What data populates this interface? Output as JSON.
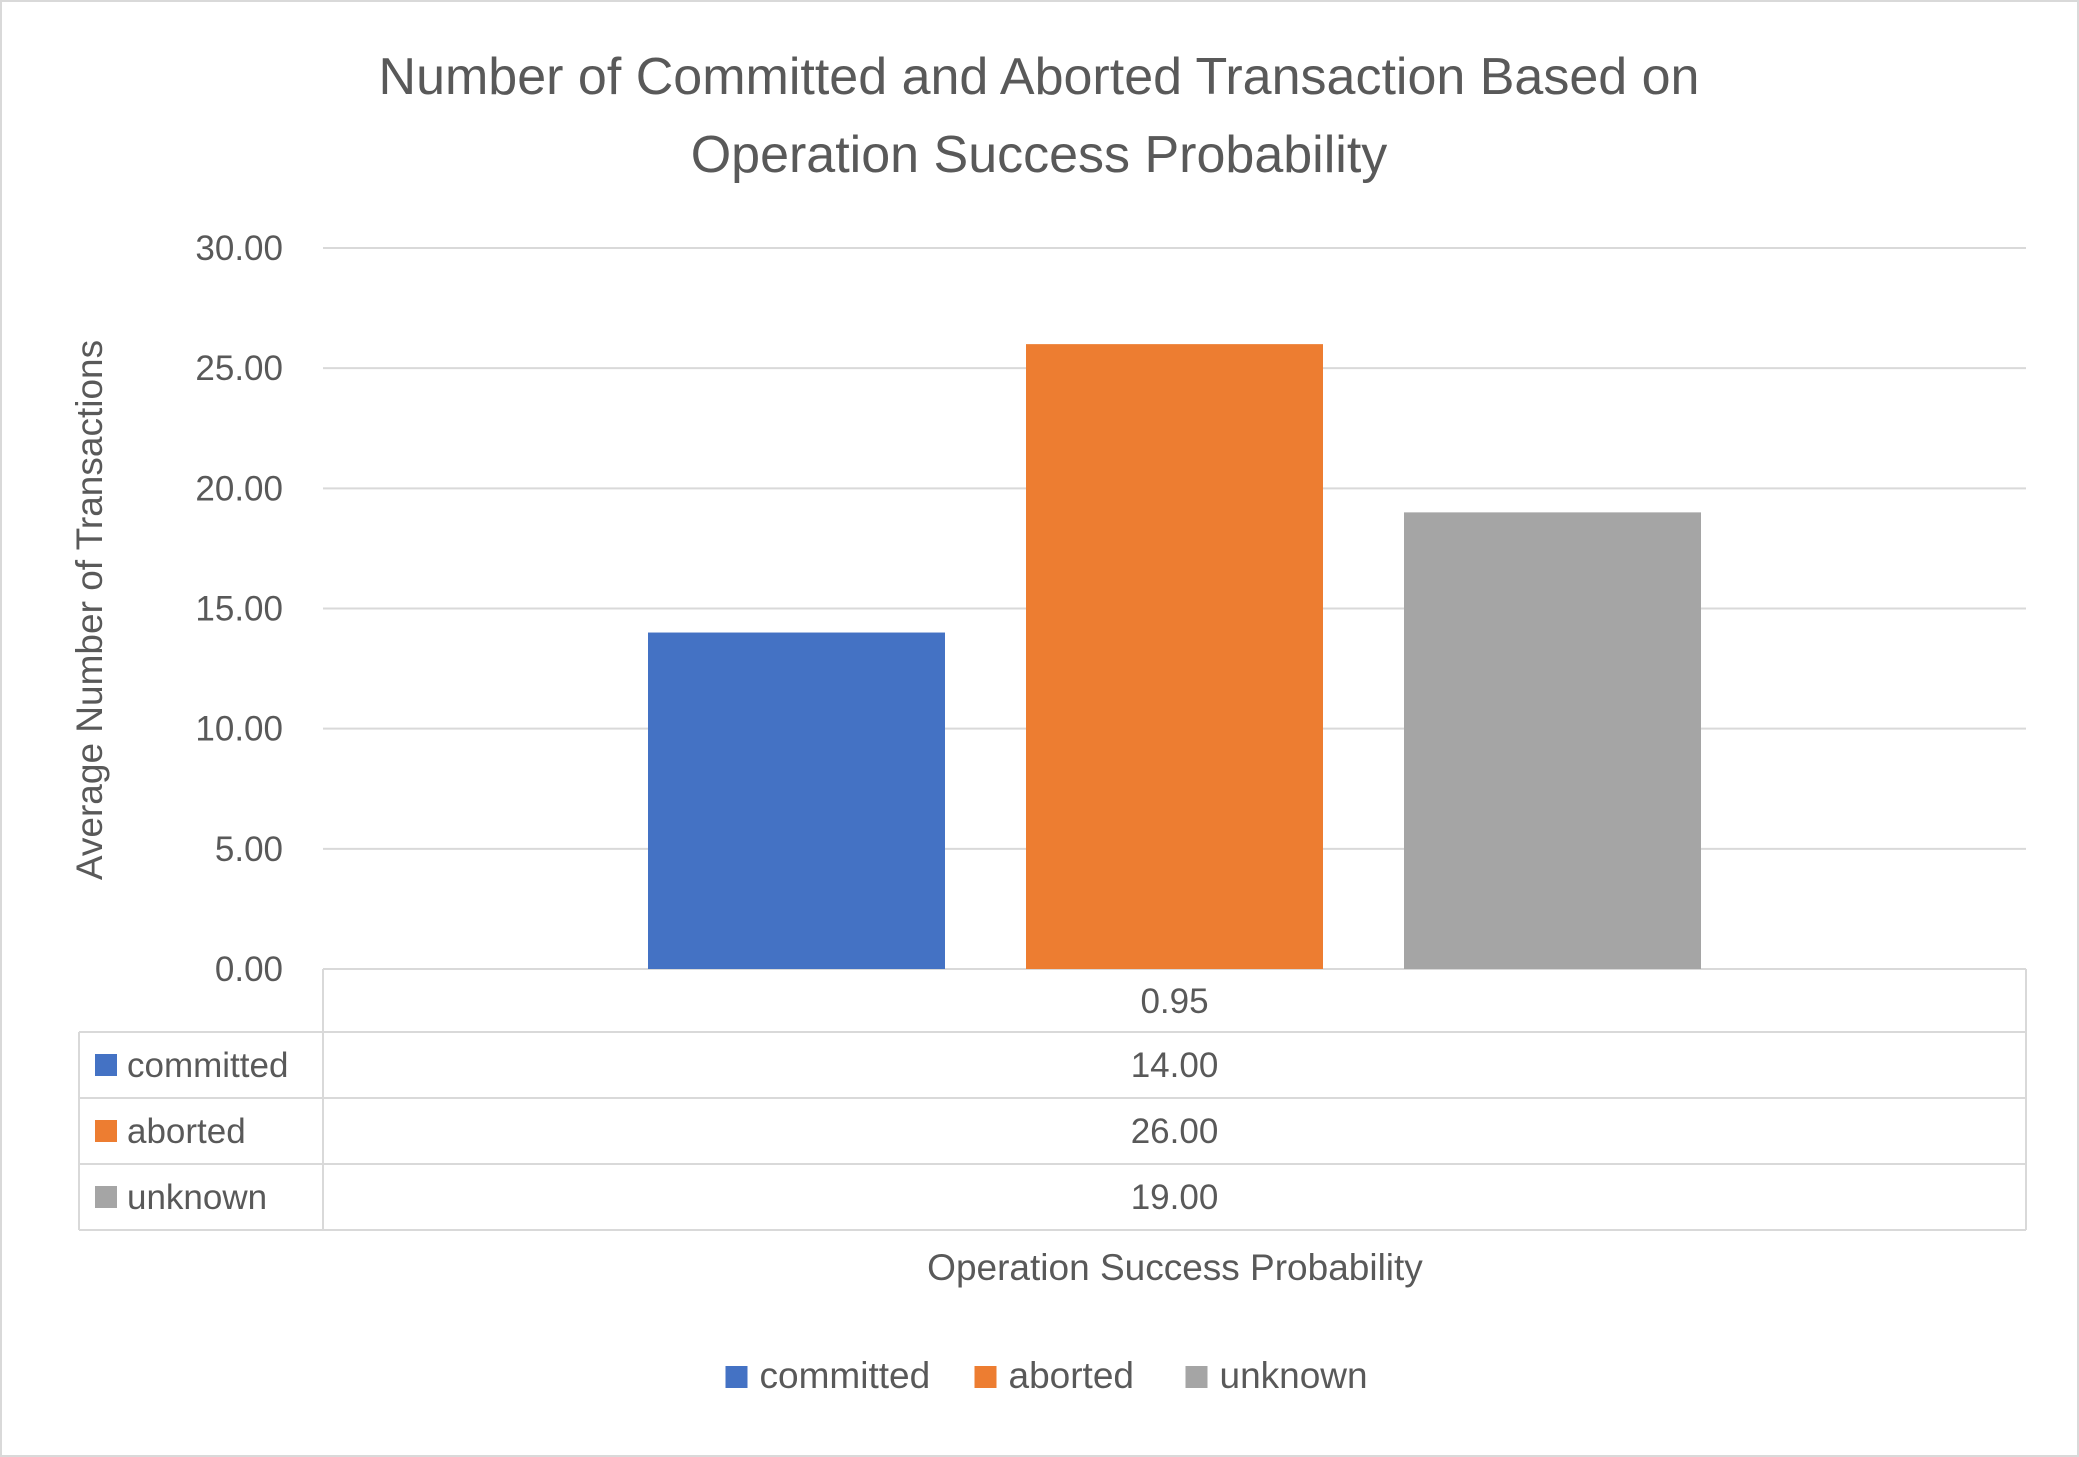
{
  "chart_data": {
    "type": "bar",
    "title_lines": [
      "Number of Committed and Aborted Transaction Based on",
      "Operation Success Probability"
    ],
    "xlabel": "Operation Success Probability",
    "ylabel": "Average Number of Transactions",
    "categories": [
      "0.95"
    ],
    "series": [
      {
        "name": "committed",
        "color": "#4472C4",
        "values": [
          14.0
        ],
        "labels": [
          "14.00"
        ]
      },
      {
        "name": "aborted",
        "color": "#ED7D31",
        "values": [
          26.0
        ],
        "labels": [
          "26.00"
        ]
      },
      {
        "name": "unknown",
        "color": "#A5A5A5",
        "values": [
          19.0
        ],
        "labels": [
          "19.00"
        ]
      }
    ],
    "ylim": [
      0,
      30
    ],
    "yticks": [
      0,
      5,
      10,
      15,
      20,
      25,
      30
    ],
    "ytick_labels": [
      "0.00",
      "5.00",
      "10.00",
      "15.00",
      "20.00",
      "25.00",
      "30.00"
    ],
    "grid": true,
    "data_table": true,
    "legend_position": "bottom"
  }
}
